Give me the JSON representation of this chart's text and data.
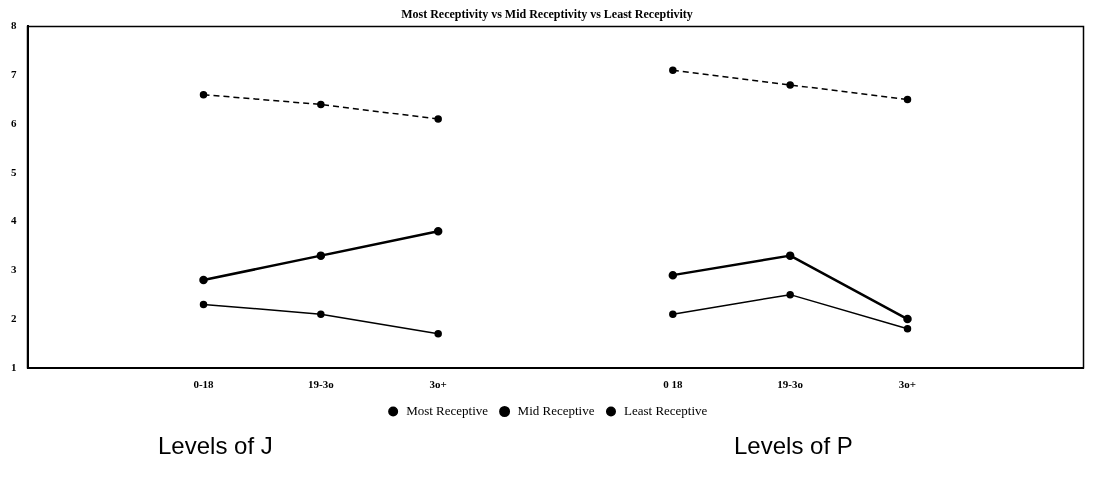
{
  "chart_data": {
    "type": "line",
    "title": "Most Receptivity vs Mid Receptivity vs Least Receptivity",
    "categories": [
      null,
      "0-18",
      "19-3o",
      "3o+",
      null,
      "0 18",
      "19-3o",
      "3o+",
      null
    ],
    "series": [
      {
        "name": "Most Receptive",
        "color": "#000000",
        "line_style": "dashed",
        "values": [
          null,
          6.6,
          6.4,
          6.1,
          null,
          7.1,
          6.8,
          6.5,
          null
        ]
      },
      {
        "name": "Mid Receptive",
        "color": "#000000",
        "line_style": "solid",
        "values": [
          null,
          2.8,
          3.3,
          3.8,
          null,
          2.9,
          3.3,
          2.0,
          null
        ]
      },
      {
        "name": "Least Receptive",
        "color": "#000000",
        "line_style": "solid",
        "values": [
          null,
          2.3,
          2.1,
          1.7,
          null,
          2.1,
          2.5,
          1.8,
          null
        ]
      }
    ],
    "ylim": [
      1,
      8
    ],
    "yticks": [
      1,
      2,
      3,
      4,
      5,
      6,
      7,
      8
    ],
    "grid": false,
    "legend": "bottom",
    "marker": "circle",
    "annotations": [
      "Levels of J",
      "Levels of P"
    ]
  }
}
